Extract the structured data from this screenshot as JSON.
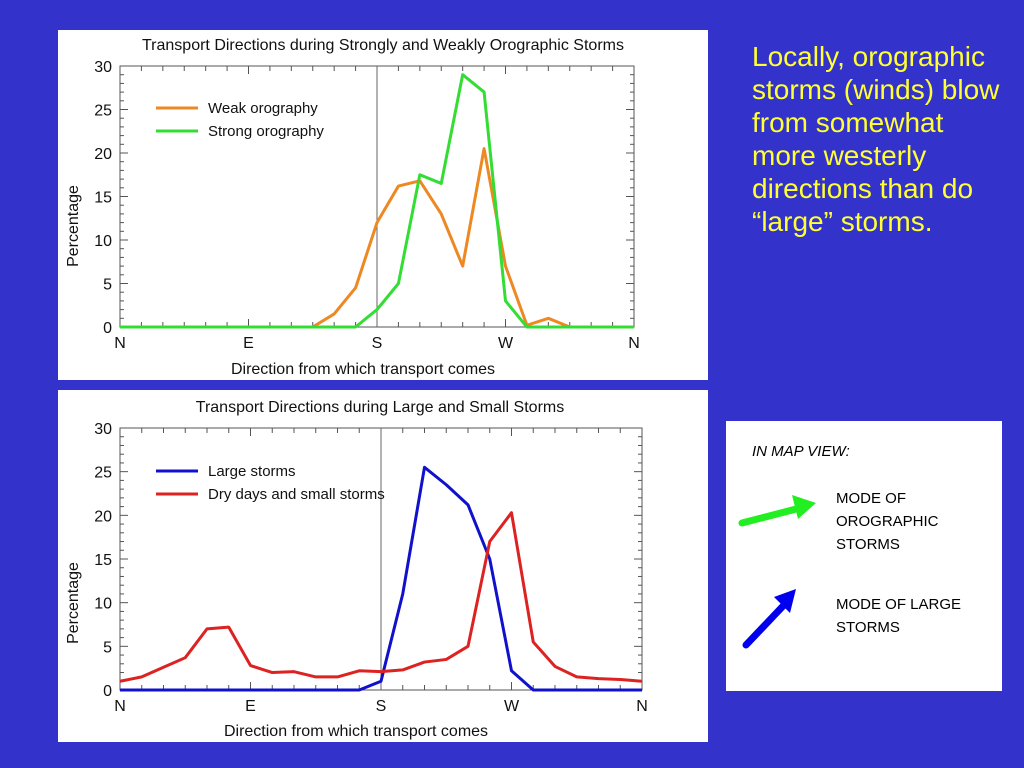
{
  "side_text": "Locally, orographic storms (winds) blow from somewhat more westerly directions than do “large” storms.",
  "map_view": {
    "title": "IN MAP VIEW:",
    "orographic_label": "MODE OF OROGRAPHIC STORMS",
    "large_label": "MODE OF LARGE STORMS",
    "orographic_color": "#22ee22",
    "large_color": "#0000ee"
  },
  "chart_data": [
    {
      "type": "line",
      "title": "Transport Directions during Strongly and Weakly Orographic Storms",
      "xlabel": "Direction from which transport comes",
      "ylabel": "Percentage",
      "ylim": [
        0,
        30
      ],
      "yticks": [
        0,
        5,
        10,
        15,
        20,
        25,
        30
      ],
      "xlim": [
        0,
        360
      ],
      "xticks": [
        {
          "value": 0,
          "label": "N"
        },
        {
          "value": 90,
          "label": "E"
        },
        {
          "value": 180,
          "label": "S"
        },
        {
          "value": 270,
          "label": "W"
        },
        {
          "value": 360,
          "label": "N"
        }
      ],
      "vline": 180,
      "legend": "top-left",
      "series": [
        {
          "name": "Weak orography",
          "color": "#ee8822",
          "x": [
            0,
            15,
            30,
            45,
            60,
            75,
            90,
            105,
            120,
            135,
            150,
            165,
            180,
            195,
            210,
            225,
            240,
            255,
            270,
            285,
            300,
            315,
            330,
            345,
            360
          ],
          "y": [
            0,
            0,
            0,
            0,
            0,
            0,
            0,
            0,
            0,
            0,
            1.5,
            4.5,
            12,
            16.2,
            16.8,
            13,
            7,
            20.5,
            7,
            0.2,
            1,
            0,
            0,
            0,
            0
          ]
        },
        {
          "name": "Strong orography",
          "color": "#33dd33",
          "x": [
            0,
            15,
            30,
            45,
            60,
            75,
            90,
            105,
            120,
            135,
            150,
            165,
            180,
            195,
            210,
            225,
            240,
            255,
            270,
            285,
            300,
            315,
            330,
            345,
            360
          ],
          "y": [
            0,
            0,
            0,
            0,
            0,
            0,
            0,
            0,
            0,
            0,
            0,
            0,
            2,
            5,
            17.5,
            16.5,
            29,
            27,
            3,
            0,
            0,
            0,
            0,
            0,
            0
          ]
        }
      ]
    },
    {
      "type": "line",
      "title": "Transport Directions during Large and Small Storms",
      "xlabel": "Direction from which transport comes",
      "ylabel": "Percentage",
      "ylim": [
        0,
        30
      ],
      "yticks": [
        0,
        5,
        10,
        15,
        20,
        25,
        30
      ],
      "xlim": [
        0,
        360
      ],
      "xticks": [
        {
          "value": 0,
          "label": "N"
        },
        {
          "value": 90,
          "label": "E"
        },
        {
          "value": 180,
          "label": "S"
        },
        {
          "value": 270,
          "label": "W"
        },
        {
          "value": 360,
          "label": "N"
        }
      ],
      "vline": 180,
      "legend": "top-left",
      "series": [
        {
          "name": "Large storms",
          "color": "#1111cc",
          "x": [
            0,
            15,
            30,
            45,
            60,
            75,
            90,
            105,
            120,
            135,
            150,
            165,
            180,
            195,
            210,
            225,
            240,
            255,
            270,
            285,
            300,
            315,
            330,
            345,
            360
          ],
          "y": [
            0,
            0,
            0,
            0,
            0,
            0,
            0,
            0,
            0,
            0,
            0,
            0,
            1,
            11,
            25.5,
            23.5,
            21.2,
            15,
            2.2,
            0,
            0,
            0,
            0,
            0,
            0
          ]
        },
        {
          "name": "Dry days and small storms",
          "color": "#dd2222",
          "x": [
            0,
            15,
            30,
            45,
            60,
            75,
            90,
            105,
            120,
            135,
            150,
            165,
            180,
            195,
            210,
            225,
            240,
            255,
            270,
            285,
            300,
            315,
            330,
            345,
            360
          ],
          "y": [
            1,
            1.5,
            2.6,
            3.7,
            7,
            7.2,
            2.8,
            2,
            2.1,
            1.5,
            1.5,
            2.2,
            2.1,
            2.3,
            3.2,
            3.5,
            5,
            17,
            20.3,
            5.5,
            2.7,
            1.5,
            1.3,
            1.2,
            1
          ]
        }
      ]
    }
  ]
}
